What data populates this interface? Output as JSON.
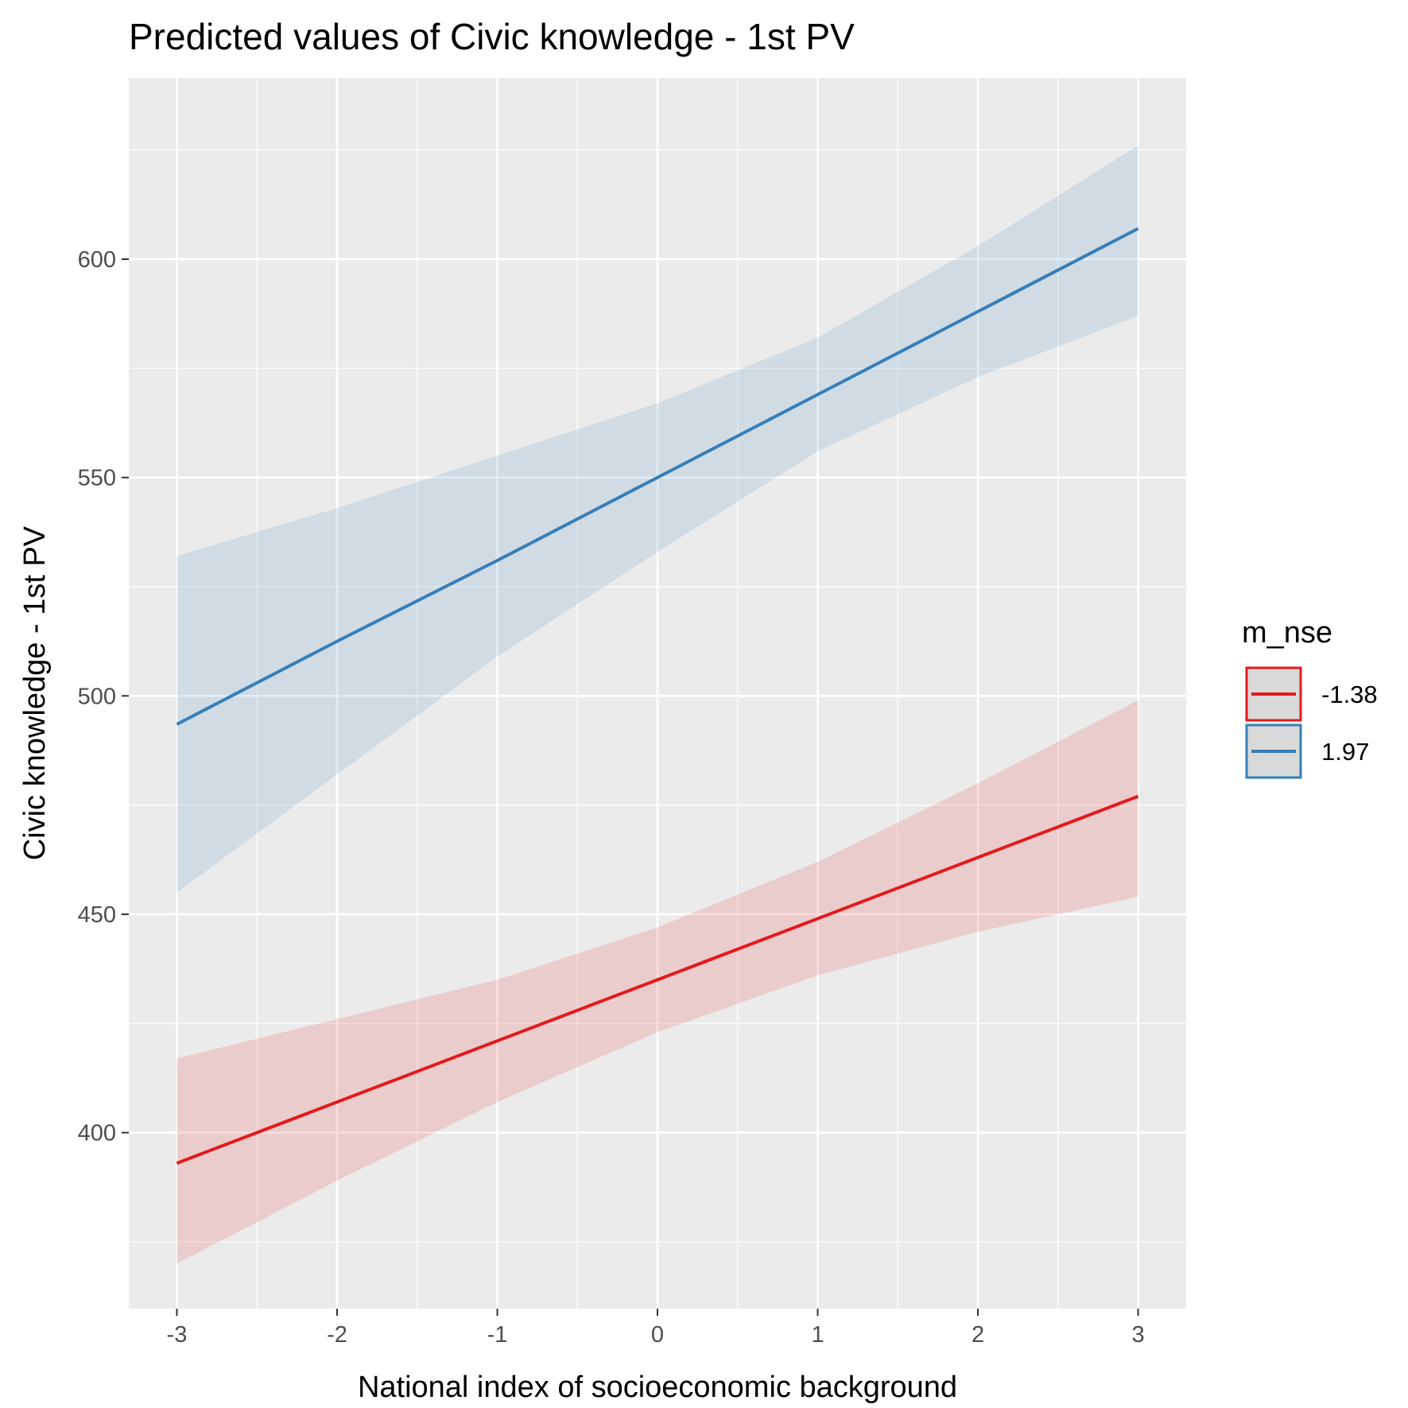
{
  "chart_data": {
    "type": "line",
    "title": "Predicted values of Civic knowledge - 1st PV",
    "xlabel": "National index of socioeconomic background",
    "ylabel": "Civic knowledge - 1st PV",
    "x_ticks": [
      -3,
      -2,
      -1,
      0,
      1,
      2,
      3
    ],
    "y_ticks": [
      400,
      450,
      500,
      550,
      600
    ],
    "xlim": [
      -3.3,
      3.3
    ],
    "ylim": [
      359.7,
      641.5
    ],
    "grid": true,
    "legend": {
      "title": "m_nse",
      "position": "right"
    },
    "x": [
      -3,
      -2,
      -1,
      0,
      1,
      2,
      3
    ],
    "series": [
      {
        "name": "-1.38",
        "color": "#e41a1c",
        "ribbon_color": "#e41a1c",
        "values": [
          393,
          407,
          421,
          435,
          449,
          463,
          477
        ],
        "lower": [
          370,
          389,
          407,
          423,
          436,
          446,
          454
        ],
        "upper": [
          417,
          426,
          435,
          447,
          462,
          480,
          499
        ]
      },
      {
        "name": "1.97",
        "color": "#377eb8",
        "ribbon_color": "#377eb8",
        "values": [
          493.5,
          512.5,
          531,
          550,
          569,
          588,
          607
        ],
        "lower": [
          455,
          482,
          509,
          533,
          556,
          573,
          587
        ],
        "upper": [
          532,
          543,
          555,
          567,
          582,
          603,
          626
        ]
      }
    ]
  }
}
